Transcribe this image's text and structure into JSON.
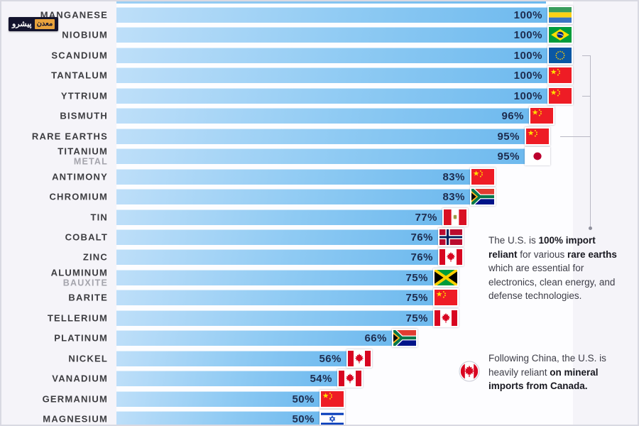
{
  "watermark": {
    "left_text": "پیشرو",
    "right_text": "معدن"
  },
  "chart_data": {
    "type": "bar",
    "title": "",
    "unit": "%",
    "x_range": [
      0,
      100
    ],
    "orientation": "horizontal",
    "legend": "none",
    "grid": false,
    "rows": [
      {
        "label": "MANGANESE",
        "sublabel": "",
        "value": 100,
        "value_label": "100%",
        "flag": "Gabon"
      },
      {
        "label": "NIOBIUM",
        "sublabel": "",
        "value": 100,
        "value_label": "100%",
        "flag": "Brazil"
      },
      {
        "label": "SCANDIUM",
        "sublabel": "",
        "value": 100,
        "value_label": "100%",
        "flag": "EU"
      },
      {
        "label": "TANTALUM",
        "sublabel": "",
        "value": 100,
        "value_label": "100%",
        "flag": "China"
      },
      {
        "label": "YTTRIUM",
        "sublabel": "",
        "value": 100,
        "value_label": "100%",
        "flag": "China"
      },
      {
        "label": "BISMUTH",
        "sublabel": "",
        "value": 96,
        "value_label": "96%",
        "flag": "China"
      },
      {
        "label": "RARE EARTHS",
        "sublabel": "",
        "value": 95,
        "value_label": "95%",
        "flag": "China"
      },
      {
        "label": "TITANIUM",
        "sublabel": "METAL",
        "value": 95,
        "value_label": "95%",
        "flag": "Japan"
      },
      {
        "label": "ANTIMONY",
        "sublabel": "",
        "value": 83,
        "value_label": "83%",
        "flag": "China"
      },
      {
        "label": "CHROMIUM",
        "sublabel": "",
        "value": 83,
        "value_label": "83%",
        "flag": "South Africa"
      },
      {
        "label": "TIN",
        "sublabel": "",
        "value": 77,
        "value_label": "77%",
        "flag": "Peru"
      },
      {
        "label": "COBALT",
        "sublabel": "",
        "value": 76,
        "value_label": "76%",
        "flag": "Norway"
      },
      {
        "label": "ZINC",
        "sublabel": "",
        "value": 76,
        "value_label": "76%",
        "flag": "Canada"
      },
      {
        "label": "ALUMINUM",
        "sublabel": "BAUXITE",
        "value": 75,
        "value_label": "75%",
        "flag": "Jamaica"
      },
      {
        "label": "BARITE",
        "sublabel": "",
        "value": 75,
        "value_label": "75%",
        "flag": "China"
      },
      {
        "label": "TELLERIUM",
        "sublabel": "",
        "value": 75,
        "value_label": "75%",
        "flag": "Canada"
      },
      {
        "label": "PLATINUM",
        "sublabel": "",
        "value": 66,
        "value_label": "66%",
        "flag": "South Africa"
      },
      {
        "label": "NICKEL",
        "sublabel": "",
        "value": 56,
        "value_label": "56%",
        "flag": "Canada"
      },
      {
        "label": "VANADIUM",
        "sublabel": "",
        "value": 54,
        "value_label": "54%",
        "flag": "Canada"
      },
      {
        "label": "GERMANIUM",
        "sublabel": "",
        "value": 50,
        "value_label": "50%",
        "flag": "China"
      },
      {
        "label": "MAGNESIUM",
        "sublabel": "",
        "value": 50,
        "value_label": "50%",
        "flag": "Israel"
      }
    ],
    "cropped_partial_rows": {
      "top_visible": true,
      "top_approx_value": 94,
      "bottom_visible": true
    }
  },
  "annotations": {
    "rare_earths": {
      "bracket_rows": [
        "SCANDIUM",
        "YTTRIUM",
        "RARE EARTHS"
      ],
      "segments": [
        {
          "text": "The U.S. is ",
          "bold": false
        },
        {
          "text": "100% import reliant",
          "bold": true
        },
        {
          "text": " for various ",
          "bold": false
        },
        {
          "text": "rare earths",
          "bold": true
        },
        {
          "text": " which are essential for electronics, clean energy, and defense technologies.",
          "bold": false
        }
      ]
    },
    "canada": {
      "icon": "Canada",
      "segments": [
        {
          "text": "Following China, the U.S. is heavily reliant ",
          "bold": false
        },
        {
          "text": "on mineral imports from Canada.",
          "bold": true
        }
      ]
    }
  },
  "colors": {
    "page_bg": "#f5f4f9",
    "track_bg": "#fdfdff",
    "bar_gradient_start": "#bedff9",
    "bar_gradient_end": "#6db9ee",
    "pct_text": "#1e2c4e",
    "label_text": "#3c3c40",
    "sublabel_text": "#a4a4ac",
    "annotation_text": "#3d3d47",
    "bracket_line": "#b8b8c4",
    "canada_red": "#d80621"
  }
}
